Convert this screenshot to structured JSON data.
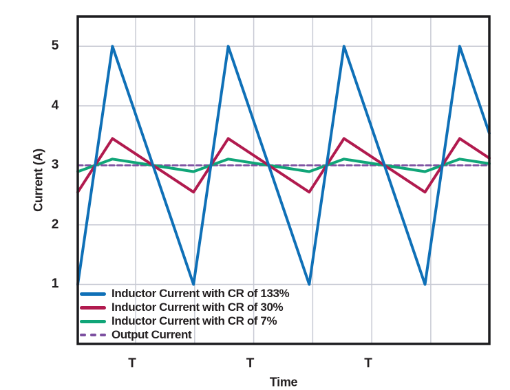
{
  "chart_data": {
    "type": "line",
    "title": "",
    "xlabel": "Time",
    "ylabel": "Current (A)",
    "ylim": [
      0,
      5.5
    ],
    "yticks": [
      1,
      2,
      3,
      4,
      5
    ],
    "x_periods_shown": 3.556,
    "x_gridlines_periods": [
      0.5,
      1.01,
      1.52,
      2.03,
      2.54,
      3.05
    ],
    "xtick_labels": [
      {
        "label": "T",
        "t": 0.47
      },
      {
        "label": "T",
        "t": 1.49
      },
      {
        "label": "T",
        "t": 2.51
      }
    ],
    "grid_on": true,
    "legend_position": "bottom-left-inside",
    "average_output_current_A": 3.0,
    "series": [
      {
        "name": "Inductor Current with CR of 133%",
        "color": "#0f70b7",
        "waveform": "triangle",
        "min": 1.0,
        "max": 5.0,
        "duty": 0.3,
        "line_width": 4,
        "dash": null
      },
      {
        "name": "Inductor Current with CR of 30%",
        "color": "#b11a4e",
        "waveform": "triangle",
        "min": 2.55,
        "max": 3.45,
        "duty": 0.3,
        "line_width": 4,
        "dash": null
      },
      {
        "name": "Inductor Current with CR of 7%",
        "color": "#10a578",
        "waveform": "triangle",
        "min": 2.895,
        "max": 3.105,
        "duty": 0.3,
        "line_width": 4,
        "dash": null
      },
      {
        "name": "Output Current",
        "color": "#7c4fa0",
        "waveform": "constant",
        "value": 3.0,
        "line_width": 2.8,
        "dash": "7 4.5"
      }
    ]
  },
  "colors": {
    "axis_frame": "#1c1c1f",
    "gridline": "#c8cad4",
    "text": "#231f20",
    "background": "#ffffff"
  }
}
